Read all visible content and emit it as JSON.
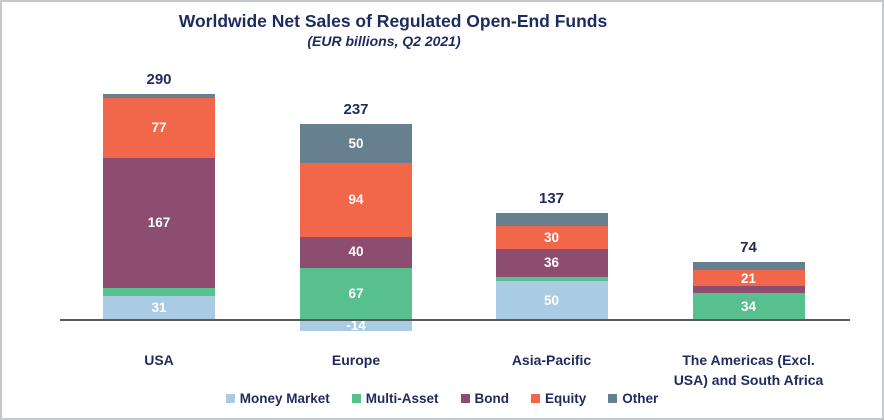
{
  "chart_data": {
    "type": "bar",
    "variant": "stacked-column",
    "title": "Worldwide Net Sales of Regulated Open-End Funds",
    "subtitle": "(EUR billions, Q2 2021)",
    "unit": "EUR billions",
    "period": "Q2 2021",
    "legend_position": "bottom",
    "grid": false,
    "colors": {
      "title_text": "#1f2a5e",
      "segment_value_text": "#ffffff",
      "axis_baseline": "#58595b",
      "frame_border": "#c6c9cc",
      "background": "#ffffff"
    },
    "series": [
      {
        "name": "Money Market",
        "color": "#a9cbe4"
      },
      {
        "name": "Multi-Asset",
        "color": "#57c08e"
      },
      {
        "name": "Bond",
        "color": "#8d4d70"
      },
      {
        "name": "Equity",
        "color": "#f2664a"
      },
      {
        "name": "Other",
        "color": "#66808f"
      }
    ],
    "categories": [
      "USA",
      "Europe",
      "Asia-Pacific",
      "The Americas (Excl. USA) and South Africa"
    ],
    "bars": [
      {
        "category": "USA",
        "category_lines": [
          "USA"
        ],
        "total": 290,
        "total_label": "290",
        "segments": [
          {
            "series": "Money Market",
            "value": 31,
            "label": "31"
          },
          {
            "series": "Multi-Asset",
            "value": 10,
            "label": null
          },
          {
            "series": "Bond",
            "value": 167,
            "label": "167"
          },
          {
            "series": "Equity",
            "value": 77,
            "label": "77"
          },
          {
            "series": "Other",
            "value": 5,
            "label": null
          }
        ]
      },
      {
        "category": "Europe",
        "category_lines": [
          "Europe"
        ],
        "total": 237,
        "total_label": "237",
        "segments": [
          {
            "series": "Money Market",
            "value": -14,
            "label": "-14"
          },
          {
            "series": "Multi-Asset",
            "value": 67,
            "label": "67"
          },
          {
            "series": "Bond",
            "value": 40,
            "label": "40"
          },
          {
            "series": "Equity",
            "value": 94,
            "label": "94"
          },
          {
            "series": "Other",
            "value": 50,
            "label": "50"
          }
        ]
      },
      {
        "category": "Asia-Pacific",
        "category_lines": [
          "Asia-Pacific"
        ],
        "total": 137,
        "total_label": "137",
        "segments": [
          {
            "series": "Money Market",
            "value": 50,
            "label": "50"
          },
          {
            "series": "Multi-Asset",
            "value": 5,
            "label": null
          },
          {
            "series": "Bond",
            "value": 36,
            "label": "36"
          },
          {
            "series": "Equity",
            "value": 30,
            "label": "30"
          },
          {
            "series": "Other",
            "value": 16,
            "label": null
          }
        ]
      },
      {
        "category": "The Americas (Excl. USA) and South Africa",
        "category_lines": [
          "The Americas (Excl.",
          "USA) and South Africa"
        ],
        "total": 74,
        "total_label": "74",
        "segments": [
          {
            "series": "Money Market",
            "value": 0,
            "label": null
          },
          {
            "series": "Multi-Asset",
            "value": 34,
            "label": "34"
          },
          {
            "series": "Bond",
            "value": 9,
            "label": null
          },
          {
            "series": "Equity",
            "value": 21,
            "label": "21"
          },
          {
            "series": "Other",
            "value": 10,
            "label": null
          }
        ]
      }
    ]
  }
}
